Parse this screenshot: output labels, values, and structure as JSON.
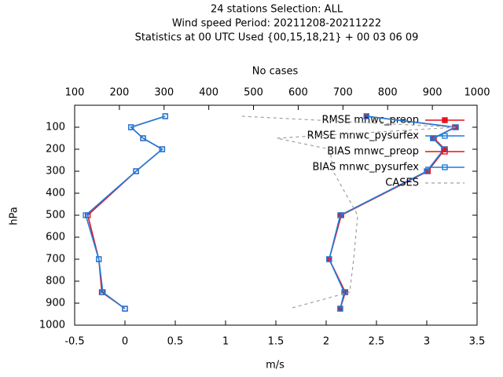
{
  "chart_data": {
    "type": "line",
    "title_lines": [
      "24 stations Selection: ALL",
      "Wind speed  Period: 20211208-20211222",
      "Statistics at 00 UTC  Used {00,15,18,21} + 00 03 06 09"
    ],
    "xlabel": "m/s",
    "x2label": "No cases",
    "ylabel": "hPa",
    "xlim": [
      -0.5,
      3.5
    ],
    "xticks": [
      -0.5,
      0,
      0.5,
      1,
      1.5,
      2,
      2.5,
      3,
      3.5
    ],
    "x2lim": [
      100,
      1000
    ],
    "x2ticks": [
      100,
      200,
      300,
      400,
      500,
      600,
      700,
      800,
      900,
      1000
    ],
    "ylim": [
      0,
      1000
    ],
    "y_inverted": true,
    "yticks": [
      100,
      200,
      300,
      400,
      500,
      600,
      700,
      800,
      900,
      1000
    ],
    "y": [
      50,
      100,
      150,
      200,
      300,
      500,
      700,
      850,
      925
    ],
    "series": [
      {
        "name": "RMSE mnwc_preop",
        "color": "#e8101a",
        "values": [
          2.4,
          3.28,
          3.07,
          3.18,
          3.01,
          2.15,
          2.03,
          2.19,
          2.14
        ]
      },
      {
        "name": "RMSE mnwc_pysurfex",
        "color": "#1a7fe0",
        "values": [
          2.4,
          3.29,
          3.06,
          3.17,
          3.0,
          2.14,
          2.03,
          2.18,
          2.14
        ]
      },
      {
        "name": "BIAS mnwc_preop",
        "color": "#e8101a",
        "values": [
          0.4,
          0.06,
          0.18,
          0.37,
          0.11,
          -0.37,
          -0.26,
          -0.23,
          0.0
        ]
      },
      {
        "name": "BIAS mnwc_pysurfex",
        "color": "#1a7fe0",
        "values": [
          0.4,
          0.06,
          0.18,
          0.37,
          0.11,
          -0.39,
          -0.26,
          -0.22,
          0.0
        ]
      },
      {
        "name": "CASES",
        "color": "#a0a0a0",
        "axis": "x2",
        "dashed": true,
        "values": [
          474,
          952,
          552,
          671,
          678,
          733,
          724,
          715,
          580
        ]
      }
    ]
  }
}
